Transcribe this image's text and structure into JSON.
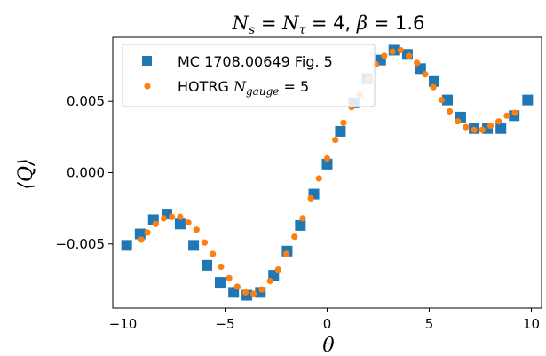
{
  "chart_data": {
    "type": "scatter",
    "title_parts": {
      "Ns": "N",
      "Ns_sub": "s",
      "eq1": " = ",
      "Nt": "N",
      "Nt_sub": "τ",
      "eq2": " = 4, ",
      "beta": "β",
      "eq3": " = 1.6"
    },
    "xlabel": "θ",
    "ylabel": "⟨Q⟩",
    "xlim": [
      -10.5,
      10.5
    ],
    "ylim": [
      -0.0095,
      0.0095
    ],
    "xticks": [
      -10,
      -5,
      0,
      5,
      10
    ],
    "xtick_labels": [
      "−10",
      "−5",
      "0",
      "5",
      "10"
    ],
    "yticks": [
      -0.005,
      0.0,
      0.005
    ],
    "ytick_labels": [
      "−0.005",
      "0.000",
      "0.005"
    ],
    "legend_position": "top-left",
    "series": [
      {
        "name": "MC 1708.00649 Fig. 5",
        "marker": "square",
        "color": "#1f77b4",
        "x": [
          -9.82,
          -9.16,
          -8.51,
          -7.85,
          -7.2,
          -6.54,
          -5.89,
          -5.24,
          -4.58,
          -3.93,
          -3.27,
          -2.62,
          -1.96,
          -1.31,
          -0.65,
          0.0,
          0.65,
          1.31,
          1.96,
          2.62,
          3.27,
          3.93,
          4.58,
          5.24,
          5.89,
          6.54,
          7.2,
          7.85,
          8.51,
          9.16,
          9.82
        ],
        "y": [
          -0.0051,
          -0.0043,
          -0.0033,
          -0.0029,
          -0.0036,
          -0.0051,
          -0.0065,
          -0.0077,
          -0.0084,
          -0.0086,
          -0.0084,
          -0.0072,
          -0.0055,
          -0.0037,
          -0.0015,
          0.0006,
          0.0029,
          0.0049,
          0.0066,
          0.0079,
          0.0086,
          0.0083,
          0.0073,
          0.0064,
          0.0051,
          0.0039,
          0.0031,
          0.0031,
          0.0031,
          0.004,
          0.0051
        ]
      },
      {
        "name": "HOTRG N_gauge = 5",
        "name_parts": {
          "prefix": "HOTRG ",
          "N": "N",
          "sub": "gauge",
          "suffix": " = 5"
        },
        "marker": "circle",
        "color": "#ff7f0e",
        "x": [
          -9.1,
          -8.8,
          -8.4,
          -8.0,
          -7.6,
          -7.2,
          -6.8,
          -6.4,
          -6.0,
          -5.6,
          -5.2,
          -4.8,
          -4.4,
          -4.0,
          -3.6,
          -3.2,
          -2.8,
          -2.4,
          -2.0,
          -1.6,
          -1.2,
          -0.8,
          -0.4,
          0.0,
          0.4,
          0.8,
          1.2,
          1.6,
          2.0,
          2.4,
          2.8,
          3.2,
          3.6,
          4.0,
          4.4,
          4.8,
          5.2,
          5.6,
          6.0,
          6.4,
          6.8,
          7.2,
          7.6,
          8.0,
          8.4,
          8.8,
          9.2
        ],
        "y": [
          -0.0047,
          -0.0042,
          -0.0036,
          -0.0032,
          -0.0031,
          -0.0031,
          -0.0035,
          -0.004,
          -0.0049,
          -0.0057,
          -0.0066,
          -0.0074,
          -0.008,
          -0.0084,
          -0.0085,
          -0.0082,
          -0.0076,
          -0.0068,
          -0.0057,
          -0.0045,
          -0.0032,
          -0.0018,
          -0.0004,
          0.001,
          0.0023,
          0.0035,
          0.0046,
          0.0055,
          0.0066,
          0.0076,
          0.0082,
          0.0085,
          0.0086,
          0.0082,
          0.0077,
          0.0069,
          0.006,
          0.0051,
          0.0043,
          0.0036,
          0.0032,
          0.003,
          0.003,
          0.0033,
          0.0036,
          0.004,
          0.0042
        ]
      }
    ]
  }
}
